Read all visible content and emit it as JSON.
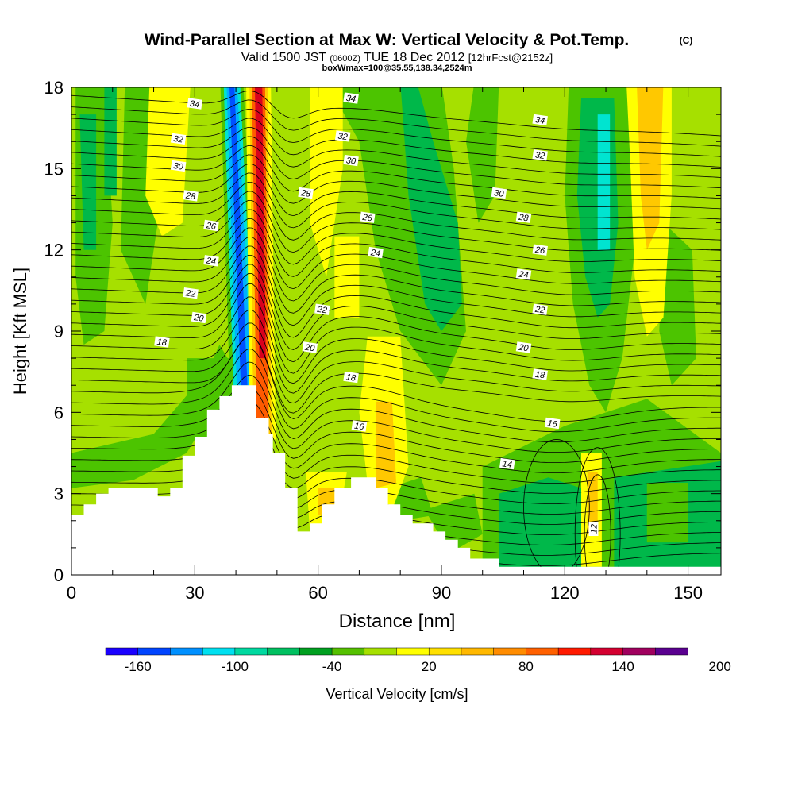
{
  "chart_data": {
    "type": "heatmap",
    "title": "Wind-Parallel Section at Max W: Vertical Velocity & Pot.Temp.",
    "title_mark": "(C)",
    "subtitle_parts": {
      "valid": "Valid 1500 JST",
      "utc": "(0600Z)",
      "date": "TUE 18 Dec 2012",
      "forecast": "[12hrFcst@2152z]"
    },
    "subtitle2": "boxWmax=100@35.55,138.34,2524m",
    "xlabel": "Distance [nm]",
    "ylabel": "Height [Kft MSL]",
    "xlim": [
      0,
      158
    ],
    "ylim": [
      0,
      18
    ],
    "xticks": [
      "0",
      "30",
      "60",
      "90",
      "120",
      "150"
    ],
    "yticks": [
      "0",
      "3",
      "6",
      "9",
      "12",
      "15",
      "18"
    ],
    "colorbar": {
      "label": "Vertical Velocity [cm/s]",
      "tick_labels": [
        "-160",
        "-100",
        "-40",
        "20",
        "80",
        "140",
        "200"
      ],
      "colors": [
        "#1a00ff",
        "#0044ff",
        "#0090ff",
        "#00e0f0",
        "#00d9a0",
        "#00c060",
        "#00a020",
        "#55c000",
        "#a6e000",
        "#ffff00",
        "#ffe000",
        "#ffb800",
        "#ff8c00",
        "#ff6000",
        "#ff1a00",
        "#d40030",
        "#a0005e",
        "#5a0090"
      ]
    },
    "field_colors": {
      "strong_down": "#0050ff",
      "down": "#00b0ff",
      "weak_down": "#00e4d0",
      "neg": "#00b84a",
      "slight_neg": "#4cc400",
      "background": "#a6e000",
      "weak_up": "#ffff00",
      "up": "#ffc800",
      "strong_up": "#ff5a00",
      "peak_up": "#d8001e",
      "terrain": "#ffffff"
    },
    "theta_contour_labels": [
      {
        "value": "34",
        "x": 30,
        "y": 17.4
      },
      {
        "value": "34",
        "x": 68,
        "y": 17.6
      },
      {
        "value": "34",
        "x": 114,
        "y": 16.8
      },
      {
        "value": "32",
        "x": 26,
        "y": 16.1
      },
      {
        "value": "32",
        "x": 66,
        "y": 16.2
      },
      {
        "value": "32",
        "x": 114,
        "y": 15.5
      },
      {
        "value": "30",
        "x": 26,
        "y": 15.1
      },
      {
        "value": "30",
        "x": 68,
        "y": 15.3
      },
      {
        "value": "30",
        "x": 104,
        "y": 14.1
      },
      {
        "value": "28",
        "x": 29,
        "y": 14.0
      },
      {
        "value": "28",
        "x": 57,
        "y": 14.1
      },
      {
        "value": "28",
        "x": 110,
        "y": 13.2
      },
      {
        "value": "26",
        "x": 34,
        "y": 12.9
      },
      {
        "value": "26",
        "x": 72,
        "y": 13.2
      },
      {
        "value": "26",
        "x": 114,
        "y": 12.0
      },
      {
        "value": "24",
        "x": 34,
        "y": 11.6
      },
      {
        "value": "24",
        "x": 74,
        "y": 11.9
      },
      {
        "value": "24",
        "x": 110,
        "y": 11.1
      },
      {
        "value": "22",
        "x": 29,
        "y": 10.4
      },
      {
        "value": "22",
        "x": 61,
        "y": 9.8
      },
      {
        "value": "22",
        "x": 114,
        "y": 9.8
      },
      {
        "value": "20",
        "x": 31,
        "y": 9.5
      },
      {
        "value": "20",
        "x": 58,
        "y": 8.4
      },
      {
        "value": "20",
        "x": 110,
        "y": 8.4
      },
      {
        "value": "18",
        "x": 22,
        "y": 8.6
      },
      {
        "value": "18",
        "x": 68,
        "y": 7.3
      },
      {
        "value": "18",
        "x": 114,
        "y": 7.4
      },
      {
        "value": "16",
        "x": 70,
        "y": 5.5
      },
      {
        "value": "16",
        "x": 117,
        "y": 5.6
      },
      {
        "value": "14",
        "x": 106,
        "y": 4.1
      },
      {
        "value": "12",
        "x": 127,
        "y": 1.7
      }
    ]
  }
}
